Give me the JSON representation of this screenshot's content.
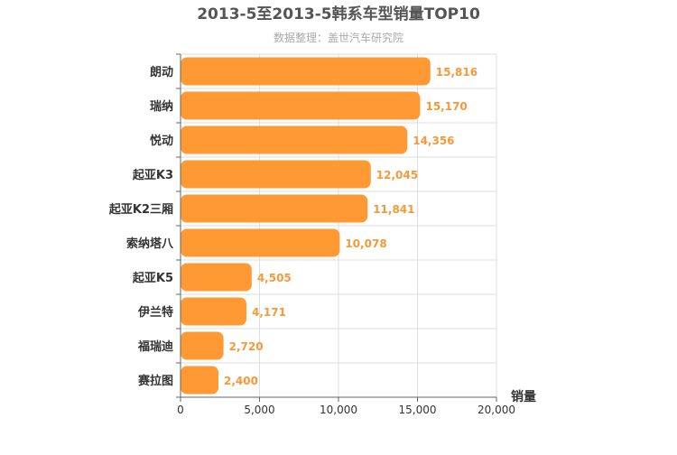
{
  "chart_data": {
    "type": "bar",
    "orientation": "horizontal",
    "title": "2013-5至2013-5韩系车型销量TOP10",
    "subtitle": "数据整理：盖世汽车研究院",
    "xlabel": "销量",
    "ylabel": "",
    "xlim": [
      0,
      20000
    ],
    "xticks": [
      0,
      5000,
      10000,
      15000,
      20000
    ],
    "xtick_labels": [
      "0",
      "5,000",
      "10,000",
      "15,000",
      "20,000"
    ],
    "grid": true,
    "categories": [
      "朗动",
      "瑞纳",
      "悦动",
      "起亚K3",
      "起亚K2三厢",
      "索纳塔八",
      "起亚K5",
      "伊兰特",
      "福瑞迪",
      "赛拉图"
    ],
    "values": [
      15816,
      15170,
      14356,
      12045,
      11841,
      10078,
      4505,
      4171,
      2720,
      2400
    ],
    "value_labels": [
      "15,816",
      "15,170",
      "14,356",
      "12,045",
      "11,841",
      "10,078",
      "4,505",
      "4,171",
      "2,720",
      "2,400"
    ],
    "colors": {
      "bar": "#FF9933",
      "value_label": "#F59A3A",
      "title": "#555555",
      "subtitle": "#AAAAAA",
      "axis_text": "#333333",
      "grid": "#DDDDDD",
      "axis_line": "#666666"
    }
  }
}
